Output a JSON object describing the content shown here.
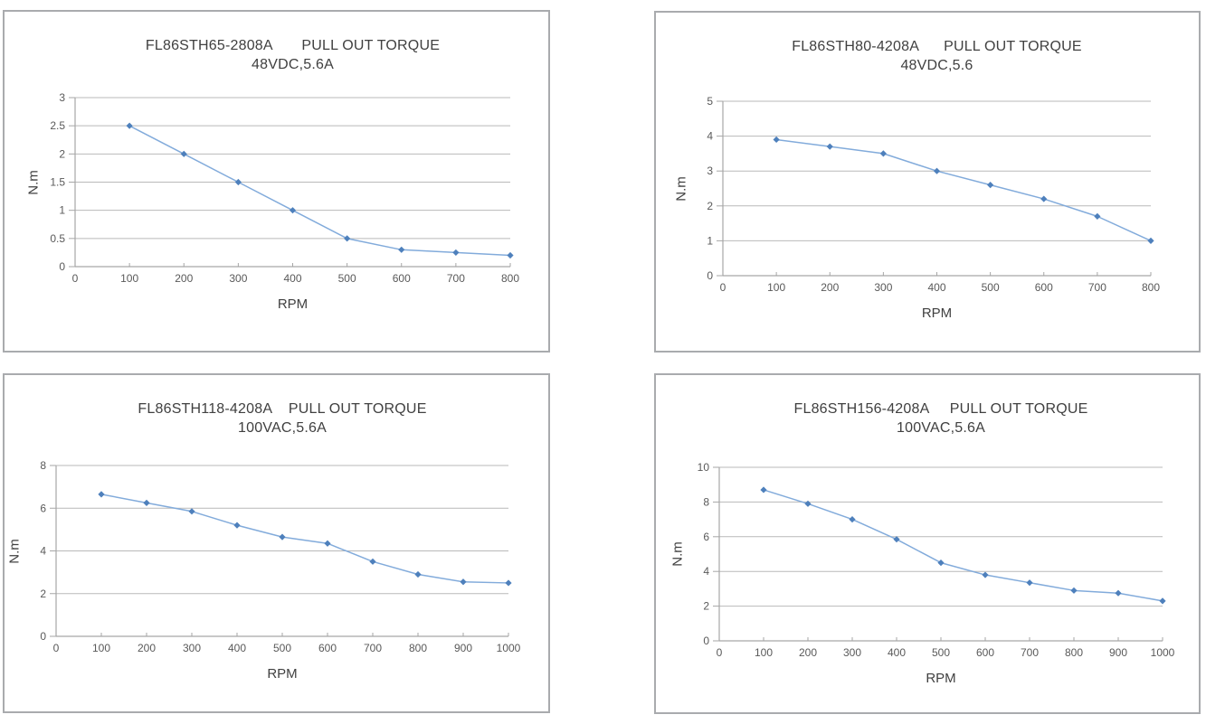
{
  "page": {
    "background": "#ffffff"
  },
  "colors": {
    "series_line": "#82abdb",
    "series_marker": "#4e80bc",
    "gridline": "#b9b9b9",
    "axis": "#a6a6a6",
    "panel_border": "#a9abae",
    "title_text": "#404040",
    "tick_text": "#595959"
  },
  "chart_data": [
    {
      "type": "line",
      "title": "FL86STH65-2808A       PULL OUT TORQUE",
      "subtitle": "48VDC,5.6A",
      "xlabel": "RPM",
      "ylabel": "N.m",
      "x": [
        100,
        200,
        300,
        400,
        500,
        600,
        700,
        800
      ],
      "values": [
        2.5,
        2,
        1.5,
        1,
        0.5,
        0.3,
        0.25,
        0.2
      ],
      "xlim": [
        0,
        800
      ],
      "ylim": [
        0,
        3
      ],
      "xticks": [
        0,
        100,
        200,
        300,
        400,
        500,
        600,
        700,
        800
      ],
      "ytick_values": [
        0,
        0.5,
        1,
        1.5,
        2,
        2.5,
        3
      ],
      "ytick_labels": [
        "0",
        "0.5",
        "1",
        "1.5",
        "2",
        "2.5",
        "3"
      ],
      "grid": "horizontal",
      "legend": "none"
    },
    {
      "type": "line",
      "title": "FL86STH80-4208A      PULL OUT TORQUE",
      "subtitle": "48VDC,5.6",
      "xlabel": "RPM",
      "ylabel": "N.m",
      "x": [
        100,
        200,
        300,
        400,
        500,
        600,
        700,
        800
      ],
      "values": [
        3.9,
        3.7,
        3.5,
        3,
        2.6,
        2.2,
        1.7,
        1
      ],
      "xlim": [
        0,
        800
      ],
      "ylim": [
        0,
        5
      ],
      "xticks": [
        0,
        100,
        200,
        300,
        400,
        500,
        600,
        700,
        800
      ],
      "ytick_values": [
        0,
        1,
        2,
        3,
        4,
        5
      ],
      "ytick_labels": [
        "0",
        "1",
        "2",
        "3",
        "4",
        "5"
      ],
      "grid": "horizontal",
      "legend": "none"
    },
    {
      "type": "line",
      "title": "FL86STH118-4208A    PULL OUT TORQUE",
      "subtitle": "100VAC,5.6A",
      "xlabel": "RPM",
      "ylabel": "N.m",
      "x": [
        100,
        200,
        300,
        400,
        500,
        600,
        700,
        800,
        900,
        1000
      ],
      "values": [
        6.65,
        6.25,
        5.85,
        5.2,
        4.65,
        4.35,
        3.5,
        2.9,
        2.55,
        2.5
      ],
      "xlim": [
        0,
        1000
      ],
      "ylim": [
        0,
        8
      ],
      "xticks": [
        0,
        100,
        200,
        300,
        400,
        500,
        600,
        700,
        800,
        900,
        1000
      ],
      "ytick_values": [
        0,
        2,
        4,
        6,
        8
      ],
      "ytick_labels": [
        "0",
        "2",
        "4",
        "6",
        "8"
      ],
      "grid": "horizontal",
      "legend": "none"
    },
    {
      "type": "line",
      "title": "FL86STH156-4208A     PULL OUT TORQUE",
      "subtitle": "100VAC,5.6A",
      "xlabel": "RPM",
      "ylabel": "N.m",
      "x": [
        100,
        200,
        300,
        400,
        500,
        600,
        700,
        800,
        900,
        1000
      ],
      "values": [
        8.7,
        7.9,
        7,
        5.85,
        4.5,
        3.8,
        3.35,
        2.9,
        2.75,
        2.3
      ],
      "xlim": [
        0,
        1000
      ],
      "ylim": [
        0,
        10
      ],
      "xticks": [
        0,
        100,
        200,
        300,
        400,
        500,
        600,
        700,
        800,
        900,
        1000
      ],
      "ytick_values": [
        0,
        2,
        4,
        6,
        8,
        10
      ],
      "ytick_labels": [
        "0",
        "2",
        "4",
        "6",
        "8",
        "10"
      ],
      "grid": "horizontal",
      "legend": "none"
    }
  ]
}
